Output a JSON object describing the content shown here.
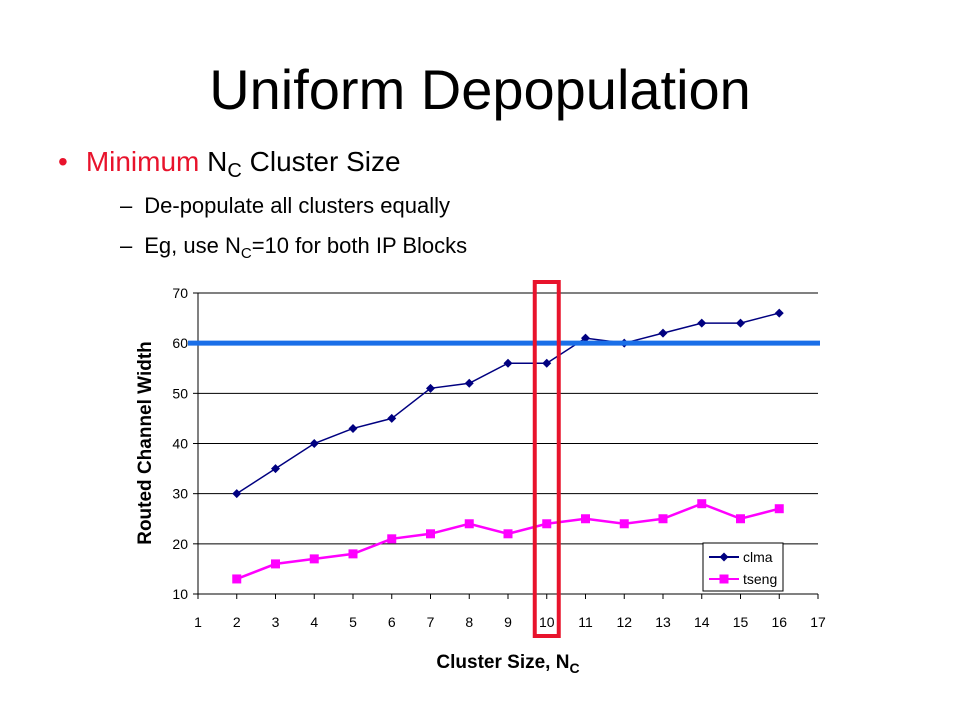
{
  "slide": {
    "title": "Uniform Depopulation",
    "bullet": {
      "marker": "•",
      "red_text": "Minimum",
      "nc_main": "N",
      "nc_sub": "C",
      "rest": "Cluster Size"
    },
    "subbullets": [
      {
        "dash": "–",
        "text": "De-populate all clusters equally"
      },
      {
        "dash": "–",
        "pre": "Eg, use N",
        "sub": "C",
        "post": "=10 for both IP Blocks"
      }
    ]
  },
  "chart_data": {
    "type": "line",
    "x": [
      2,
      3,
      4,
      5,
      6,
      7,
      8,
      9,
      10,
      11,
      12,
      13,
      14,
      15,
      16
    ],
    "xlim": [
      1,
      17
    ],
    "ylim": [
      10,
      70
    ],
    "xticks": [
      "1",
      "2",
      "3",
      "4",
      "5",
      "6",
      "7",
      "8",
      "9",
      "10",
      "11",
      "12",
      "13",
      "14",
      "15",
      "16",
      "17"
    ],
    "yticks": [
      "10",
      "20",
      "30",
      "40",
      "50",
      "60",
      "70"
    ],
    "xlabel_main": "Cluster Size, N",
    "xlabel_sub": "C",
    "ylabel": "Routed Channel Width",
    "grid": "horizontal",
    "legend_position": "bottom-right",
    "series": [
      {
        "name": "clma",
        "color": "#000080",
        "marker": "diamond",
        "values": [
          30,
          35,
          40,
          43,
          45,
          51,
          52,
          56,
          56,
          61,
          60,
          62,
          64,
          64,
          66
        ]
      },
      {
        "name": "tseng",
        "color": "#ff00ff",
        "marker": "square",
        "values": [
          13,
          16,
          17,
          18,
          21,
          22,
          24,
          22,
          24,
          25,
          24,
          25,
          28,
          25,
          27
        ]
      }
    ],
    "threshold_line": {
      "y": 60,
      "color": "#1a6fe8"
    },
    "highlight": {
      "x": 10,
      "color": "#e8132c"
    }
  }
}
